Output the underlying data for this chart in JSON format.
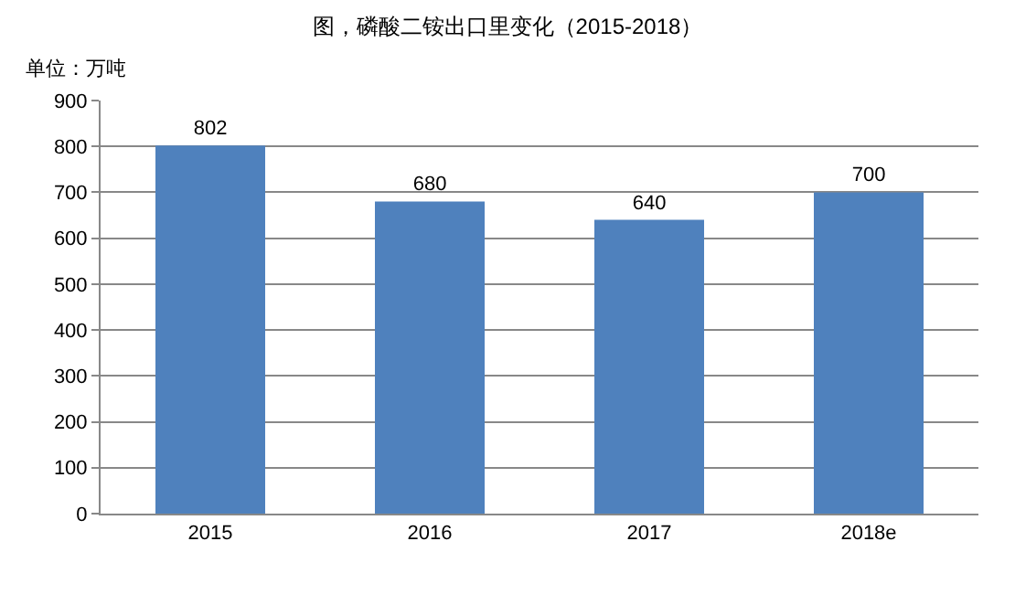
{
  "chart_data": {
    "type": "bar",
    "title": "图，磷酸二铵出口里变化（2015-2018）",
    "ylabel": "单位：万吨",
    "categories": [
      "2015",
      "2016",
      "2017",
      "2018e"
    ],
    "values": [
      802,
      680,
      640,
      700
    ],
    "color": "#4f81bd",
    "ylim": [
      0,
      900
    ],
    "yticks": [
      0,
      100,
      200,
      300,
      400,
      500,
      600,
      700,
      800,
      900
    ],
    "grid": "y",
    "data_labels": true,
    "legend": false
  }
}
